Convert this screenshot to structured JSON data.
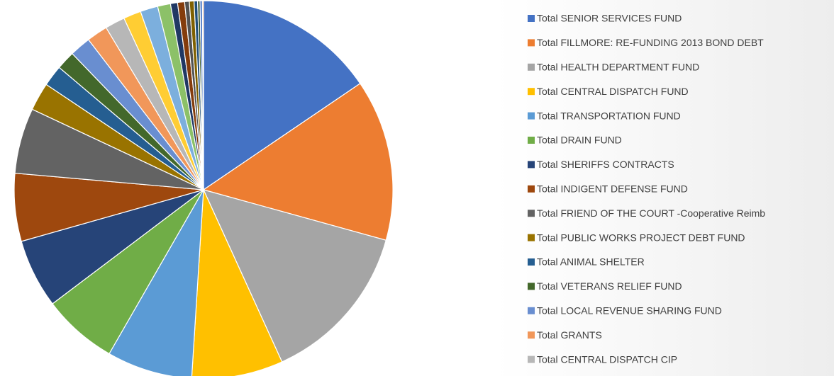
{
  "chart_data": {
    "type": "pie",
    "categories": [
      "Total SENIOR SERVICES FUND",
      "Total FILLMORE: RE-FUNDING 2013 BOND DEBT",
      "Total HEALTH DEPARTMENT FUND",
      "Total CENTRAL DISPATCH FUND",
      "Total TRANSPORTATION FUND",
      "Total DRAIN FUND",
      "Total SHERIFFS CONTRACTS",
      "Total INDIGENT DEFENSE FUND",
      "Total FRIEND OF THE COURT -Cooperative Reimb",
      "Total PUBLIC WORKS PROJECT DEBT FUND",
      "Total ANIMAL SHELTER",
      "Total VETERANS RELIEF FUND",
      "Total LOCAL REVENUE SHARING FUND",
      "Total GRANTS",
      "Total CENTRAL DISPATCH CIP",
      null,
      null,
      null,
      null,
      null,
      null,
      null,
      null,
      null,
      null,
      null
    ],
    "values": [
      15.5,
      13.8,
      13.9,
      7.8,
      7.3,
      6.4,
      5.9,
      5.8,
      5.6,
      2.4,
      1.8,
      1.6,
      1.8,
      1.8,
      1.7,
      1.5,
      1.5,
      1.1,
      0.6,
      0.6,
      0.4,
      0.4,
      0.3,
      0.2,
      0.2,
      0.1
    ],
    "colors": [
      "#4472c4",
      "#ed7d31",
      "#a5a5a5",
      "#ffc000",
      "#5b9bd5",
      "#70ad47",
      "#264478",
      "#9e480e",
      "#636363",
      "#997300",
      "#255e91",
      "#43682b",
      "#698ed0",
      "#f1975a",
      "#b7b7b7",
      "#ffcd33",
      "#7cafdd",
      "#8cc168",
      "#203864",
      "#843c0c",
      "#525252",
      "#7f6000",
      "#1f4e79",
      "#375623",
      "#4472c4",
      "#ed7d31"
    ],
    "legend": "right"
  }
}
